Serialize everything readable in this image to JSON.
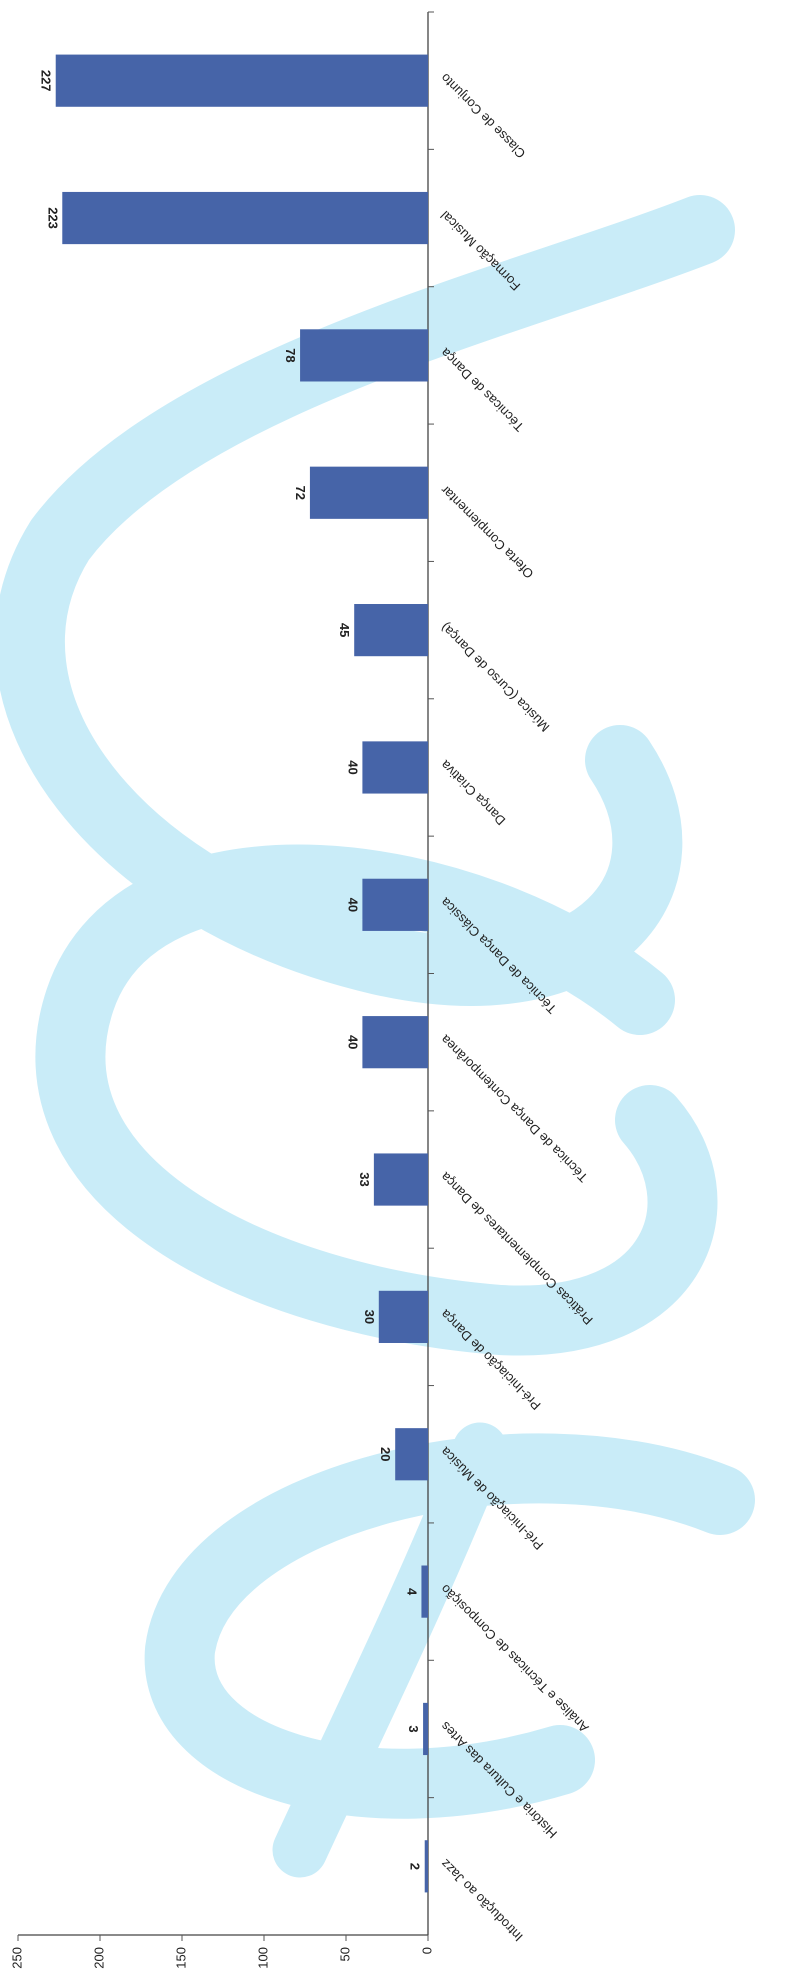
{
  "chart_data": {
    "type": "bar",
    "orientation": "rotated-90",
    "categories": [
      "Classe de Conjunto",
      "Formação Musical",
      "Técnicas de Dança",
      "Oferta Complementar",
      "Música (Curso de Dança)",
      "Dança Criativa",
      "Técnica de Dança Clássica",
      "Técnica de Dança Contemporânea",
      "Práticas Complementares de Dança",
      "Pré-Iniciação de Dança",
      "Pré-Iniciação de Música",
      "Análise e Técnicas de Composição",
      "História e Cultura das Artes",
      "Introdução ao Jazz"
    ],
    "values": [
      227,
      223,
      78,
      72,
      45,
      40,
      40,
      40,
      33,
      30,
      20,
      4,
      3,
      2
    ],
    "data_labels": [
      "227",
      "223",
      "78",
      "72",
      "45",
      "40",
      "40",
      "40",
      "33",
      "30",
      "20",
      "4",
      "3",
      "2"
    ],
    "ylim": [
      0,
      250
    ],
    "yticks": [
      "0",
      "50",
      "100",
      "150",
      "200",
      "250"
    ],
    "bar_color": "#4664a8",
    "grid": false,
    "legend": "none"
  }
}
